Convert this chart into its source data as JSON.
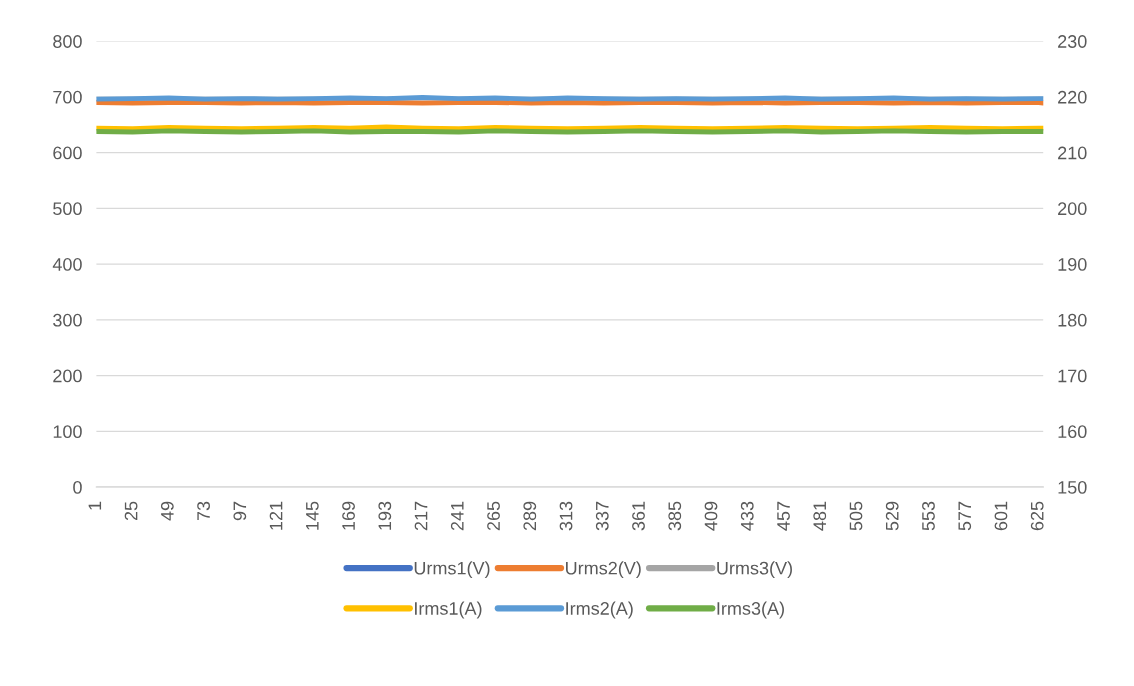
{
  "chart_data": {
    "type": "line",
    "x": [
      1,
      25,
      49,
      73,
      97,
      121,
      145,
      169,
      193,
      217,
      241,
      265,
      289,
      313,
      337,
      361,
      385,
      409,
      433,
      457,
      481,
      505,
      529,
      553,
      577,
      601,
      625,
      628
    ],
    "xlim": [
      1,
      628
    ],
    "xticks": [
      1,
      25,
      49,
      73,
      97,
      121,
      145,
      169,
      193,
      217,
      241,
      265,
      289,
      313,
      337,
      361,
      385,
      409,
      433,
      457,
      481,
      505,
      529,
      553,
      577,
      601,
      625
    ],
    "ylim": [
      0,
      800
    ],
    "yticks": [
      0,
      100,
      200,
      300,
      400,
      500,
      600,
      700,
      800
    ],
    "y2lim": [
      150,
      230
    ],
    "y2ticks": [
      150,
      160,
      170,
      180,
      190,
      200,
      210,
      220,
      230
    ],
    "grid": "y",
    "legend": "bottom",
    "marker": "none",
    "line_style": "solid",
    "series": [
      {
        "name": "Urms1(V)",
        "color": "#4472c4",
        "values": [
          null,
          null,
          null,
          null,
          null,
          null,
          null,
          null,
          null,
          null,
          null,
          null,
          null,
          null,
          null,
          null,
          null,
          null,
          null,
          null,
          null,
          null,
          null,
          null,
          null,
          null,
          null,
          null
        ]
      },
      {
        "name": "Urms2(V)",
        "color": "#ed7d31",
        "values": [
          690,
          689,
          690,
          690,
          689,
          690,
          689,
          690,
          690,
          689,
          690,
          690,
          689,
          690,
          689,
          690,
          690,
          689,
          690,
          689,
          690,
          690,
          689,
          690,
          689,
          690,
          690,
          689
        ]
      },
      {
        "name": "Urms3(V)",
        "color": "#a5a5a5",
        "values": [
          null,
          null,
          null,
          null,
          null,
          null,
          null,
          null,
          null,
          null,
          null,
          null,
          null,
          null,
          null,
          null,
          null,
          null,
          null,
          null,
          null,
          null,
          null,
          null,
          null,
          null,
          null,
          null
        ]
      },
      {
        "name": "Irms1(A)",
        "color": "#ffc000",
        "axis": "y2",
        "values": [
          214.4,
          214.3,
          214.5,
          214.4,
          214.3,
          214.4,
          214.5,
          214.4,
          214.6,
          214.4,
          214.3,
          214.5,
          214.4,
          214.3,
          214.4,
          214.5,
          214.4,
          214.3,
          214.4,
          214.5,
          214.4,
          214.3,
          214.4,
          214.5,
          214.4,
          214.3,
          214.4,
          214.4
        ]
      },
      {
        "name": "Irms2(A)",
        "color": "#5b9bd5",
        "axis": "y2",
        "values": [
          219.6,
          219.7,
          219.8,
          219.6,
          219.7,
          219.6,
          219.7,
          219.8,
          219.7,
          219.9,
          219.7,
          219.8,
          219.6,
          219.8,
          219.7,
          219.6,
          219.7,
          219.6,
          219.7,
          219.8,
          219.6,
          219.7,
          219.8,
          219.6,
          219.7,
          219.6,
          219.7,
          219.7
        ]
      },
      {
        "name": "Irms3(A)",
        "color": "#70ad47",
        "axis": "y2",
        "values": [
          213.8,
          213.7,
          213.9,
          213.8,
          213.7,
          213.8,
          213.9,
          213.7,
          213.8,
          213.8,
          213.7,
          213.9,
          213.8,
          213.7,
          213.8,
          213.9,
          213.8,
          213.7,
          213.8,
          213.9,
          213.7,
          213.8,
          213.9,
          213.8,
          213.7,
          213.8,
          213.8,
          213.8
        ]
      }
    ]
  }
}
